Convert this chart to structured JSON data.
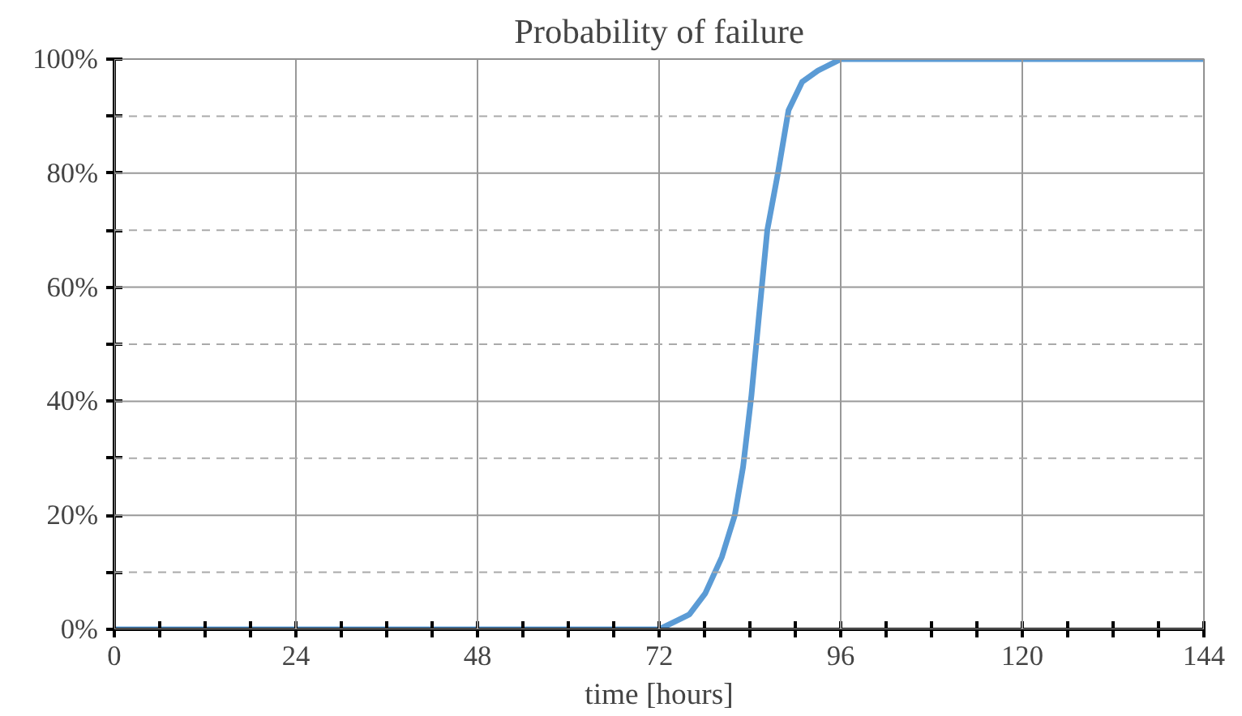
{
  "chart_data": {
    "type": "line",
    "title": "Probability of failure",
    "xlabel": "time [hours]",
    "x": [
      0,
      72,
      76,
      78.1,
      80.3,
      82,
      83.1,
      84.2,
      85.2,
      86.3,
      87.7,
      89.1,
      90.9,
      93,
      96,
      144
    ],
    "series": [
      {
        "color": "#5b9bd5",
        "values": [
          0,
          0,
          2.6,
          6.3,
          12.7,
          20,
          28.5,
          41,
          55,
          70,
          80,
          91,
          96,
          98,
          100,
          100
        ]
      }
    ],
    "xlim": [
      0,
      144
    ],
    "ylim": [
      0,
      100
    ],
    "xticks": [
      0,
      {
        "value": 6,
        "label": null
      },
      {
        "value": 12,
        "label": null
      },
      {
        "value": 18,
        "label": null
      },
      24,
      {
        "value": 30,
        "label": null
      },
      {
        "value": 36,
        "label": null
      },
      {
        "value": 42,
        "label": null
      },
      48,
      {
        "value": 54,
        "label": null
      },
      {
        "value": 60,
        "label": null
      },
      {
        "value": 66,
        "label": null
      },
      72,
      {
        "value": 78,
        "label": null
      },
      {
        "value": 84,
        "label": null
      },
      {
        "value": 90,
        "label": null
      },
      96,
      {
        "value": 102,
        "label": null
      },
      {
        "value": 108,
        "label": null
      },
      {
        "value": 114,
        "label": null
      },
      120,
      {
        "value": 126,
        "label": null
      },
      {
        "value": 132,
        "label": null
      },
      {
        "value": 138,
        "label": null
      },
      144
    ],
    "yticks": [
      {
        "value": 0,
        "label": "0%"
      },
      {
        "value": 10,
        "label": null
      },
      {
        "value": 20,
        "label": "20%"
      },
      {
        "value": 30,
        "label": null
      },
      {
        "value": 40,
        "label": "40%"
      },
      {
        "value": 50,
        "label": null
      },
      {
        "value": 60,
        "label": "60%"
      },
      {
        "value": 70,
        "label": null
      },
      {
        "value": 80,
        "label": "80%"
      },
      {
        "value": 90,
        "label": null
      },
      {
        "value": 100,
        "label": "100%"
      }
    ],
    "grid": true,
    "marker": "none",
    "line_style": "solid"
  }
}
